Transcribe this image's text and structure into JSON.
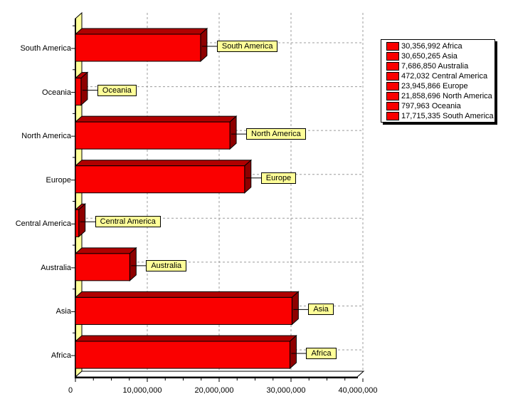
{
  "chart_data": {
    "type": "bar",
    "orientation": "horizontal",
    "style": "3d",
    "title": "",
    "xlabel": "",
    "ylabel": "",
    "categories": [
      "South America",
      "Oceania",
      "North America",
      "Europe",
      "Central America",
      "Australia",
      "Asia",
      "Africa"
    ],
    "values": [
      17715335,
      797963,
      21858696,
      23945866,
      472032,
      7686850,
      30650265,
      30356992
    ],
    "callout_labels": [
      "South America",
      "Oceania",
      "North America",
      "Europe",
      "Central America",
      "Australia",
      "Asia",
      "Africa"
    ],
    "xlim": [
      0,
      40000000
    ],
    "x_tick_values": [
      0,
      10000000,
      20000000,
      30000000,
      40000000
    ],
    "x_tick_labels": [
      "0",
      "10,000,000",
      "20,000,000",
      "30,000,000",
      "40,000,000"
    ],
    "grid": "dashed",
    "legend_position": "top-right",
    "legend_entries": [
      "30,356,992 Africa",
      "30,650,265 Asia",
      "7,686,850 Australia",
      "472,032 Central America",
      "23,945,866 Europe",
      "21,858,696 North America",
      "797,963 Oceania",
      "17,715,335 South America"
    ],
    "colors": {
      "bar_front": "#FA0000",
      "bar_top": "#B00000",
      "bar_side": "#8E0000",
      "bar_outline": "#000000",
      "callout_bg": "#FFFF99",
      "wall": "#FFFF99",
      "floor": "#FFFFFF",
      "grid": "#9C9C9C",
      "legend_swatch": "#FA0000",
      "axis": "#000000",
      "text": "#000000",
      "background": "#FFFFFF"
    }
  }
}
